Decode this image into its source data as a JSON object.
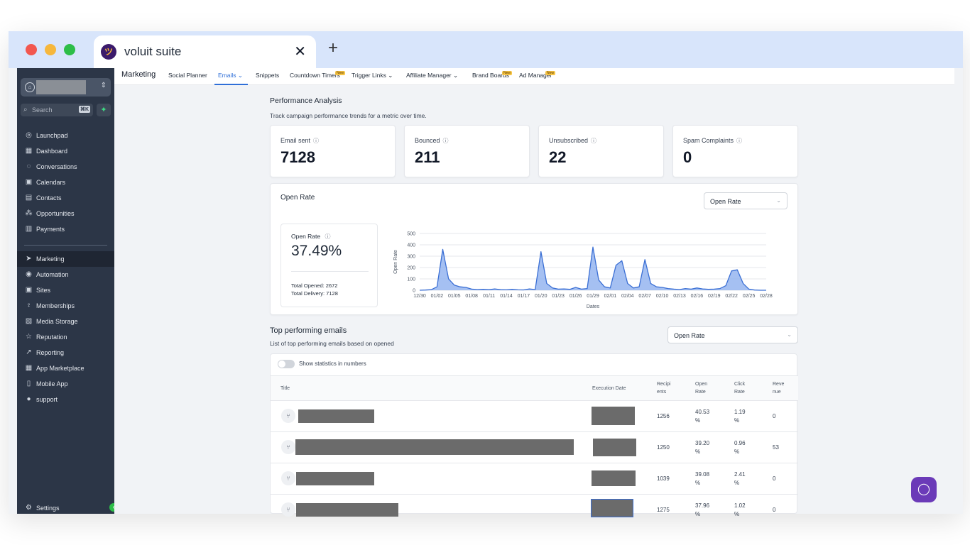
{
  "browser": {
    "tab_title": "voluit suite",
    "close_glyph": "✕",
    "new_tab_glyph": "+"
  },
  "sidebar": {
    "search_placeholder": "Search",
    "search_shortcut": "⌘K",
    "items": [
      {
        "label": "Launchpad",
        "icon": "launchpad-icon"
      },
      {
        "label": "Dashboard",
        "icon": "dashboard-icon"
      },
      {
        "label": "Conversations",
        "icon": "chat-icon"
      },
      {
        "label": "Calendars",
        "icon": "calendar-icon"
      },
      {
        "label": "Contacts",
        "icon": "contacts-icon"
      },
      {
        "label": "Opportunities",
        "icon": "opportunities-icon"
      },
      {
        "label": "Payments",
        "icon": "payments-icon"
      },
      {
        "label": "Marketing",
        "icon": "send-icon"
      },
      {
        "label": "Automation",
        "icon": "automation-icon"
      },
      {
        "label": "Sites",
        "icon": "sites-icon"
      },
      {
        "label": "Memberships",
        "icon": "memberships-icon"
      },
      {
        "label": "Media Storage",
        "icon": "media-icon"
      },
      {
        "label": "Reputation",
        "icon": "star-icon"
      },
      {
        "label": "Reporting",
        "icon": "chart-icon"
      },
      {
        "label": "App Marketplace",
        "icon": "grid-icon"
      },
      {
        "label": "Mobile App",
        "icon": "mobile-icon"
      },
      {
        "label": "support",
        "icon": "help-icon"
      }
    ],
    "settings_label": "Settings"
  },
  "topnav": {
    "brand": "Marketing",
    "items": [
      "Social Planner",
      "Emails",
      "Snippets",
      "Countdown Timers",
      "Trigger Links",
      "Affiliate Manager",
      "Brand Boards",
      "Ad Manager"
    ],
    "badge": "New"
  },
  "performance": {
    "title": "Performance Analysis",
    "subtitle": "Track campaign performance trends for a metric over time.",
    "stats": [
      {
        "label": "Email sent",
        "value": "7128"
      },
      {
        "label": "Bounced",
        "value": "211"
      },
      {
        "label": "Unsubscribed",
        "value": "22"
      },
      {
        "label": "Spam Complaints",
        "value": "0"
      }
    ]
  },
  "open_rate": {
    "title": "Open Rate",
    "select_value": "Open Rate",
    "box_label": "Open Rate",
    "box_value": "37.49%",
    "total_opened": "Total Opened: 2672",
    "total_delivery": "Total Delivery: 7128"
  },
  "chart_data": {
    "type": "area",
    "title": "",
    "xlabel": "Dates",
    "ylabel": "Open Rate",
    "ylim": [
      0,
      500
    ],
    "yticks": [
      0,
      100,
      200,
      300,
      400,
      500
    ],
    "xticks": [
      "12/30",
      "01/02",
      "01/05",
      "01/08",
      "01/11",
      "01/14",
      "01/17",
      "01/20",
      "01/23",
      "01/26",
      "01/29",
      "02/01",
      "02/04",
      "02/07",
      "02/10",
      "02/13",
      "02/16",
      "02/19",
      "02/22",
      "02/25",
      "02/28"
    ],
    "x": [
      0,
      1,
      2,
      3,
      4,
      5,
      6,
      7,
      8,
      9,
      10,
      11,
      12,
      13,
      14,
      15,
      16,
      17,
      18,
      19,
      20,
      21,
      22,
      23,
      24,
      25,
      26,
      27,
      28,
      29,
      30,
      31,
      32,
      33,
      34,
      35,
      36,
      37,
      38,
      39,
      40,
      41,
      42,
      43,
      44,
      45,
      46,
      47,
      48,
      49,
      50,
      51,
      52,
      53,
      54,
      55,
      56,
      57,
      58,
      59,
      60
    ],
    "values": [
      0,
      2,
      5,
      30,
      360,
      100,
      45,
      30,
      25,
      10,
      6,
      8,
      5,
      12,
      5,
      4,
      8,
      4,
      3,
      12,
      6,
      340,
      60,
      20,
      10,
      12,
      8,
      25,
      10,
      15,
      380,
      90,
      30,
      20,
      220,
      260,
      60,
      20,
      30,
      270,
      60,
      30,
      25,
      15,
      10,
      6,
      15,
      10,
      20,
      12,
      8,
      10,
      15,
      40,
      170,
      180,
      60,
      10,
      2,
      0,
      0
    ],
    "grid": true,
    "color": "#3b6fd4"
  },
  "top_emails": {
    "title": "Top performing emails",
    "subtitle": "List of top performing emails based on opened",
    "select_value": "Open Rate",
    "toggle_label": "Show statistics in numbers",
    "headers": {
      "title": "Title",
      "exec_date": "Execution Date",
      "recipients": "Recipi\nents",
      "open_rate": "Open\nRate",
      "click_rate": "Click\nRate",
      "revenue": "Reve\nnue"
    },
    "rows": [
      {
        "recipients": "1256",
        "open_rate": "40.53\n%",
        "click_rate": "1.19\n%",
        "revenue": "0"
      },
      {
        "recipients": "1250",
        "open_rate": "39.20\n%",
        "click_rate": "0.96\n%",
        "revenue": "53"
      },
      {
        "recipients": "1039",
        "open_rate": "39.08\n%",
        "click_rate": "2.41\n%",
        "revenue": "0"
      },
      {
        "recipients": "1275",
        "open_rate": "37.96\n%",
        "click_rate": "1.02\n%",
        "revenue": "0"
      }
    ]
  }
}
